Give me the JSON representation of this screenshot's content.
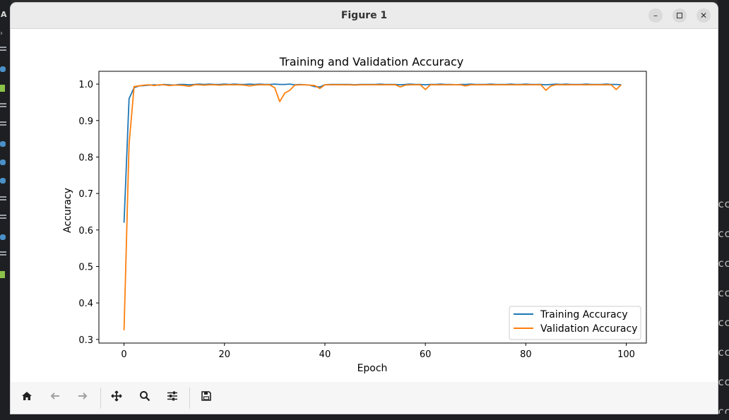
{
  "window": {
    "title": "Figure 1",
    "buttons": {
      "minimize_icon": "minimize-icon",
      "maximize_icon": "maximize-icon",
      "close_icon": "close-icon"
    }
  },
  "toolbar": {
    "icons": [
      "home-icon",
      "back-icon",
      "forward-icon",
      "pan-icon",
      "zoom-icon",
      "configure-subplots-icon",
      "save-icon"
    ]
  },
  "background": {
    "sidebar_letter": "A",
    "terminal_fragments": [
      "ccu",
      "ccu",
      "ccu",
      "ccu",
      "ccu",
      "ccu",
      "ccu",
      "ccu",
      "ccu",
      "ccu",
      "ccu"
    ]
  },
  "chart_data": {
    "type": "line",
    "title": "Training and Validation Accuracy",
    "xlabel": "Epoch",
    "ylabel": "Accuracy",
    "xlim": [
      -5,
      104
    ],
    "ylim": [
      0.29,
      1.035
    ],
    "xticks": [
      0,
      20,
      40,
      60,
      80,
      100
    ],
    "yticks": [
      0.3,
      0.4,
      0.5,
      0.6,
      0.7,
      0.8,
      0.9,
      1.0
    ],
    "xtick_labels": [
      "0",
      "20",
      "40",
      "60",
      "80",
      "100"
    ],
    "ytick_labels": [
      "0.3",
      "0.4",
      "0.5",
      "0.6",
      "0.7",
      "0.8",
      "0.9",
      "1.0"
    ],
    "legend_position": "lower-right",
    "grid": false,
    "series": [
      {
        "name": "Training Accuracy",
        "color": "#1f77b4",
        "x": [
          0,
          1,
          2,
          3,
          4,
          5,
          6,
          7,
          8,
          9,
          10,
          11,
          12,
          13,
          14,
          15,
          16,
          17,
          18,
          19,
          20,
          21,
          22,
          23,
          24,
          25,
          26,
          27,
          28,
          29,
          30,
          31,
          32,
          33,
          34,
          35,
          36,
          37,
          38,
          39,
          40,
          41,
          42,
          43,
          44,
          45,
          46,
          47,
          48,
          49,
          50,
          51,
          52,
          53,
          54,
          55,
          56,
          57,
          58,
          59,
          60,
          61,
          62,
          63,
          64,
          65,
          66,
          67,
          68,
          69,
          70,
          71,
          72,
          73,
          74,
          75,
          76,
          77,
          78,
          79,
          80,
          81,
          82,
          83,
          84,
          85,
          86,
          87,
          88,
          89,
          90,
          91,
          92,
          93,
          94,
          95,
          96,
          97,
          98,
          99
        ],
        "y": [
          0.62,
          0.96,
          0.99,
          0.995,
          0.996,
          0.997,
          0.998,
          0.997,
          0.999,
          0.998,
          0.997,
          0.999,
          0.999,
          0.998,
          0.999,
          1.0,
          0.999,
          1.0,
          0.999,
          0.999,
          1.0,
          0.999,
          1.0,
          0.999,
          0.999,
          1.0,
          0.999,
          1.0,
          0.999,
          0.999,
          1.0,
          0.999,
          0.999,
          1.0,
          0.998,
          0.999,
          0.998,
          0.997,
          0.993,
          0.992,
          0.998,
          0.999,
          0.999,
          0.999,
          0.999,
          0.999,
          0.998,
          0.999,
          0.999,
          0.999,
          0.999,
          1.0,
          0.999,
          0.999,
          0.999,
          0.998,
          0.999,
          1.0,
          0.999,
          0.999,
          0.998,
          0.999,
          0.999,
          1.0,
          0.999,
          0.999,
          0.998,
          0.999,
          0.999,
          1.0,
          0.999,
          0.999,
          0.999,
          1.0,
          0.999,
          0.999,
          0.999,
          1.0,
          0.999,
          0.999,
          1.0,
          0.999,
          0.999,
          0.999,
          0.998,
          0.999,
          1.0,
          0.999,
          1.0,
          0.999,
          0.999,
          0.999,
          1.0,
          0.999,
          0.999,
          0.999,
          1.0,
          0.999,
          0.999,
          0.998
        ]
      },
      {
        "name": "Validation Accuracy",
        "color": "#ff7f0e",
        "x": [
          0,
          1,
          2,
          3,
          4,
          5,
          6,
          7,
          8,
          9,
          10,
          11,
          12,
          13,
          14,
          15,
          16,
          17,
          18,
          19,
          20,
          21,
          22,
          23,
          24,
          25,
          26,
          27,
          28,
          29,
          30,
          31,
          32,
          33,
          34,
          35,
          36,
          37,
          38,
          39,
          40,
          41,
          42,
          43,
          44,
          45,
          46,
          47,
          48,
          49,
          50,
          51,
          52,
          53,
          54,
          55,
          56,
          57,
          58,
          59,
          60,
          61,
          62,
          63,
          64,
          65,
          66,
          67,
          68,
          69,
          70,
          71,
          72,
          73,
          74,
          75,
          76,
          77,
          78,
          79,
          80,
          81,
          82,
          83,
          84,
          85,
          86,
          87,
          88,
          89,
          90,
          91,
          92,
          93,
          94,
          95,
          96,
          97,
          98,
          99
        ],
        "y": [
          0.325,
          0.835,
          0.993,
          0.995,
          0.997,
          0.998,
          0.996,
          0.998,
          0.998,
          0.996,
          0.997,
          0.997,
          0.996,
          0.994,
          0.998,
          0.998,
          0.997,
          0.998,
          0.998,
          0.997,
          0.998,
          0.998,
          0.998,
          0.998,
          0.997,
          0.995,
          0.997,
          0.998,
          0.998,
          0.998,
          0.99,
          0.952,
          0.975,
          0.983,
          0.997,
          0.998,
          0.998,
          0.997,
          0.996,
          0.988,
          0.998,
          0.998,
          0.998,
          0.998,
          0.998,
          0.998,
          0.997,
          0.998,
          0.998,
          0.998,
          0.998,
          0.998,
          0.998,
          0.998,
          0.998,
          0.992,
          0.997,
          0.998,
          0.998,
          0.998,
          0.985,
          0.998,
          0.998,
          0.998,
          0.998,
          0.998,
          0.998,
          0.998,
          0.995,
          0.998,
          0.998,
          0.998,
          0.998,
          0.998,
          0.998,
          0.998,
          0.998,
          0.998,
          0.998,
          0.998,
          0.998,
          0.998,
          0.998,
          0.998,
          0.983,
          0.995,
          0.998,
          0.998,
          0.998,
          0.998,
          0.998,
          0.998,
          0.998,
          0.998,
          0.998,
          0.998,
          0.998,
          0.998,
          0.985,
          0.998
        ]
      }
    ]
  }
}
